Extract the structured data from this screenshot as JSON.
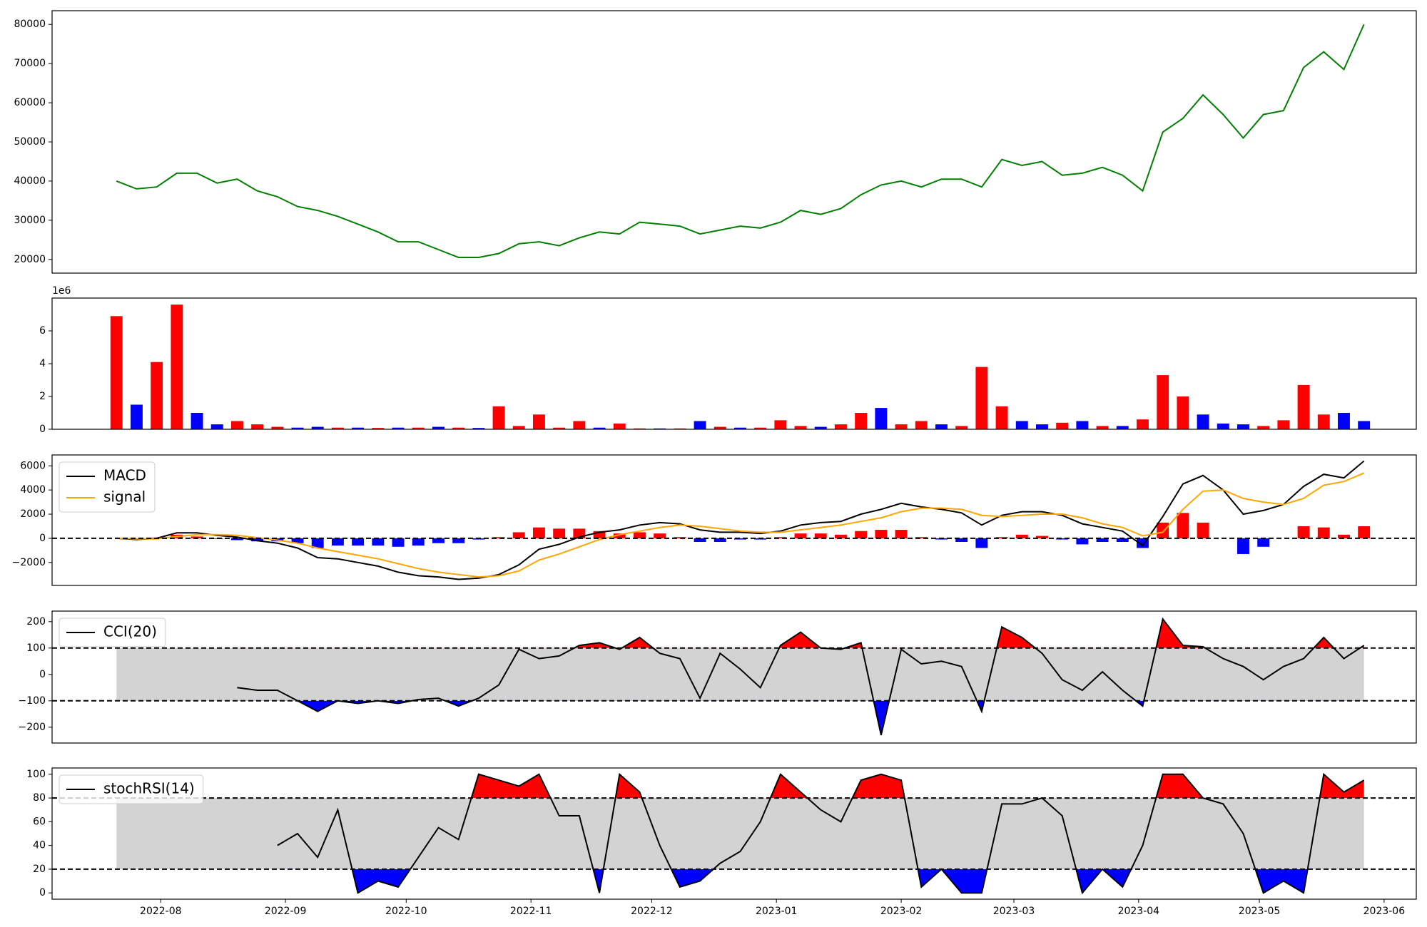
{
  "chart_data": [
    {
      "type": "line",
      "xlim": [
        "2022-07-05",
        "2023-06-09"
      ],
      "x": [
        "2022-07-21",
        "2022-07-26",
        "2022-07-31",
        "2022-08-05",
        "2022-08-10",
        "2022-08-15",
        "2022-08-20",
        "2022-08-25",
        "2022-08-30",
        "2022-09-04",
        "2022-09-09",
        "2022-09-14",
        "2022-09-19",
        "2022-09-24",
        "2022-09-29",
        "2022-10-04",
        "2022-10-09",
        "2022-10-14",
        "2022-10-19",
        "2022-10-24",
        "2022-10-29",
        "2022-11-03",
        "2022-11-08",
        "2022-11-13",
        "2022-11-18",
        "2022-11-23",
        "2022-11-28",
        "2022-12-03",
        "2022-12-08",
        "2022-12-13",
        "2022-12-18",
        "2022-12-23",
        "2022-12-28",
        "2023-01-02",
        "2023-01-07",
        "2023-01-12",
        "2023-01-17",
        "2023-01-22",
        "2023-01-27",
        "2023-02-01",
        "2023-02-06",
        "2023-02-11",
        "2023-02-16",
        "2023-02-21",
        "2023-02-26",
        "2023-03-03",
        "2023-03-08",
        "2023-03-13",
        "2023-03-18",
        "2023-03-23",
        "2023-03-28",
        "2023-04-02",
        "2023-04-07",
        "2023-04-12",
        "2023-04-17",
        "2023-04-22",
        "2023-04-27",
        "2023-05-02",
        "2023-05-07",
        "2023-05-12",
        "2023-05-17",
        "2023-05-22",
        "2023-05-27"
      ],
      "series": [
        {
          "color": "green",
          "values": [
            40000,
            38000,
            38500,
            42000,
            42000,
            39500,
            40500,
            37500,
            36000,
            33500,
            32500,
            31000,
            29000,
            27000,
            24500,
            24500,
            22500,
            20500,
            20500,
            21500,
            24000,
            24500,
            23500,
            25500,
            27000,
            26500,
            29500,
            29000,
            28500,
            26500,
            27500,
            28500,
            28000,
            29500,
            32500,
            31500,
            33000,
            36500,
            39000,
            40000,
            38500,
            40500,
            40500,
            38500,
            45500,
            44000,
            45000,
            41500,
            42000,
            43500,
            41500,
            37500,
            52500,
            56000,
            62000,
            57000,
            51000,
            57000,
            58000,
            69000,
            73000,
            68500,
            80000
          ]
        }
      ],
      "ylim": [
        16500,
        83500
      ],
      "yticks": [
        20000,
        30000,
        40000,
        50000,
        60000,
        70000,
        80000
      ]
    },
    {
      "type": "bar",
      "xlim": [
        "2022-07-05",
        "2023-06-09"
      ],
      "x": [
        "2022-07-21",
        "2022-07-26",
        "2022-07-31",
        "2022-08-05",
        "2022-08-10",
        "2022-08-15",
        "2022-08-20",
        "2022-08-25",
        "2022-08-30",
        "2022-09-04",
        "2022-09-09",
        "2022-09-14",
        "2022-09-19",
        "2022-09-24",
        "2022-09-29",
        "2022-10-04",
        "2022-10-09",
        "2022-10-14",
        "2022-10-19",
        "2022-10-24",
        "2022-10-29",
        "2022-11-03",
        "2022-11-08",
        "2022-11-13",
        "2022-11-18",
        "2022-11-23",
        "2022-11-28",
        "2022-12-03",
        "2022-12-08",
        "2022-12-13",
        "2022-12-18",
        "2022-12-23",
        "2022-12-28",
        "2023-01-02",
        "2023-01-07",
        "2023-01-12",
        "2023-01-17",
        "2023-01-22",
        "2023-01-27",
        "2023-02-01",
        "2023-02-06",
        "2023-02-11",
        "2023-02-16",
        "2023-02-21",
        "2023-02-26",
        "2023-03-03",
        "2023-03-08",
        "2023-03-13",
        "2023-03-18",
        "2023-03-23",
        "2023-03-28",
        "2023-04-02",
        "2023-04-07",
        "2023-04-12",
        "2023-04-17",
        "2023-04-22",
        "2023-04-27",
        "2023-05-02",
        "2023-05-07",
        "2023-05-12",
        "2023-05-17",
        "2023-05-22",
        "2023-05-27"
      ],
      "values": [
        6.9,
        1.5,
        4.1,
        7.6,
        1.0,
        0.3,
        0.5,
        0.3,
        0.15,
        0.1,
        0.15,
        0.1,
        0.1,
        0.08,
        0.1,
        0.1,
        0.15,
        0.1,
        0.08,
        1.4,
        0.2,
        0.9,
        0.1,
        0.5,
        0.1,
        0.35,
        0.05,
        0.05,
        0.05,
        0.5,
        0.15,
        0.1,
        0.1,
        0.55,
        0.2,
        0.15,
        0.3,
        1.0,
        1.3,
        0.3,
        0.5,
        0.3,
        0.2,
        3.8,
        1.4,
        0.5,
        0.3,
        0.4,
        0.5,
        0.2,
        0.2,
        0.6,
        3.3,
        2.0,
        0.9,
        0.35,
        0.3,
        0.2,
        0.55,
        2.7,
        0.9,
        1.0,
        0.5
      ],
      "colors": [
        "red",
        "blue",
        "red",
        "red",
        "blue",
        "blue",
        "red",
        "red",
        "red",
        "blue",
        "blue",
        "red",
        "blue",
        "red",
        "blue",
        "red",
        "blue",
        "red",
        "blue",
        "red",
        "red",
        "red",
        "red",
        "red",
        "blue",
        "red",
        "red",
        "blue",
        "red",
        "blue",
        "red",
        "blue",
        "red",
        "red",
        "red",
        "blue",
        "red",
        "red",
        "blue",
        "red",
        "red",
        "blue",
        "red",
        "red",
        "red",
        "blue",
        "blue",
        "red",
        "blue",
        "red",
        "blue",
        "red",
        "red",
        "red",
        "blue",
        "blue",
        "blue",
        "red",
        "red",
        "red",
        "red",
        "blue",
        "blue"
      ],
      "ylim": [
        0,
        8
      ],
      "yticks": [
        0,
        2,
        4,
        6
      ],
      "y_offset_label": "1e6"
    },
    {
      "type": "line",
      "xlim": [
        "2022-07-05",
        "2023-06-09"
      ],
      "x": [
        "2022-07-21",
        "2022-07-26",
        "2022-07-31",
        "2022-08-05",
        "2022-08-10",
        "2022-08-15",
        "2022-08-20",
        "2022-08-25",
        "2022-08-30",
        "2022-09-04",
        "2022-09-09",
        "2022-09-14",
        "2022-09-19",
        "2022-09-24",
        "2022-09-29",
        "2022-10-04",
        "2022-10-09",
        "2022-10-14",
        "2022-10-19",
        "2022-10-24",
        "2022-10-29",
        "2022-11-03",
        "2022-11-08",
        "2022-11-13",
        "2022-11-18",
        "2022-11-23",
        "2022-11-28",
        "2022-12-03",
        "2022-12-08",
        "2022-12-13",
        "2022-12-18",
        "2022-12-23",
        "2022-12-28",
        "2023-01-02",
        "2023-01-07",
        "2023-01-12",
        "2023-01-17",
        "2023-01-22",
        "2023-01-27",
        "2023-02-01",
        "2023-02-06",
        "2023-02-11",
        "2023-02-16",
        "2023-02-21",
        "2023-02-26",
        "2023-03-03",
        "2023-03-08",
        "2023-03-13",
        "2023-03-18",
        "2023-03-23",
        "2023-03-28",
        "2023-04-02",
        "2023-04-07",
        "2023-04-12",
        "2023-04-17",
        "2023-04-22",
        "2023-04-27",
        "2023-05-02",
        "2023-05-07",
        "2023-05-12",
        "2023-05-17",
        "2023-05-22",
        "2023-05-27"
      ],
      "series": [
        {
          "name": "MACD",
          "color": "black",
          "values": [
            0,
            -100,
            0,
            450,
            450,
            250,
            100,
            -200,
            -400,
            -800,
            -1600,
            -1700,
            -2000,
            -2300,
            -2800,
            -3100,
            -3200,
            -3400,
            -3300,
            -3000,
            -2200,
            -900,
            -500,
            100,
            500,
            700,
            1100,
            1300,
            1200,
            700,
            500,
            500,
            400,
            600,
            1100,
            1300,
            1400,
            2000,
            2400,
            2900,
            2600,
            2400,
            2100,
            1100,
            1900,
            2200,
            2200,
            1900,
            1200,
            900,
            600,
            -600,
            1800,
            4500,
            5200,
            4000,
            2000,
            2300,
            2800,
            4300,
            5300,
            5000,
            6400
          ]
        },
        {
          "name": "signal",
          "color": "orange",
          "values": [
            0,
            -50,
            -50,
            150,
            300,
            300,
            250,
            50,
            -150,
            -400,
            -800,
            -1100,
            -1400,
            -1700,
            -2100,
            -2500,
            -2800,
            -3000,
            -3200,
            -3100,
            -2700,
            -1800,
            -1300,
            -700,
            -100,
            300,
            600,
            900,
            1100,
            1000,
            800,
            600,
            500,
            500,
            700,
            900,
            1100,
            1400,
            1700,
            2200,
            2500,
            2500,
            2400,
            1900,
            1800,
            1900,
            2000,
            2000,
            1700,
            1200,
            900,
            200,
            500,
            2400,
            3900,
            4000,
            3300,
            3000,
            2800,
            3300,
            4400,
            4700,
            5400
          ]
        }
      ],
      "bar_values": [
        0,
        -50,
        50,
        300,
        150,
        -50,
        -150,
        -250,
        -250,
        -400,
        -800,
        -600,
        -600,
        -600,
        -700,
        -600,
        -400,
        -400,
        -100,
        100,
        500,
        900,
        800,
        800,
        600,
        400,
        500,
        400,
        100,
        -300,
        -300,
        -100,
        -100,
        100,
        400,
        400,
        300,
        600,
        700,
        700,
        100,
        -100,
        -300,
        -800,
        100,
        300,
        200,
        -100,
        -500,
        -300,
        -300,
        -800,
        1300,
        2100,
        1300,
        0,
        -1300,
        -700,
        0,
        1000,
        900,
        300,
        1000
      ],
      "bar_color_positive": "red",
      "bar_color_negative": "blue",
      "hlines": [
        0
      ],
      "legend": "upper left",
      "ylim": [
        -3900,
        6900
      ],
      "yticks": [
        {
          "value": -2000,
          "label": "−2000"
        },
        0,
        2000,
        4000,
        6000
      ]
    },
    {
      "type": "band",
      "xlim": [
        "2022-07-05",
        "2023-06-09"
      ],
      "x": [
        "2022-07-21",
        "2022-07-26",
        "2022-07-31",
        "2022-08-05",
        "2022-08-10",
        "2022-08-15",
        "2022-08-20",
        "2022-08-25",
        "2022-08-30",
        "2022-09-04",
        "2022-09-09",
        "2022-09-14",
        "2022-09-19",
        "2022-09-24",
        "2022-09-29",
        "2022-10-04",
        "2022-10-09",
        "2022-10-14",
        "2022-10-19",
        "2022-10-24",
        "2022-10-29",
        "2022-11-03",
        "2022-11-08",
        "2022-11-13",
        "2022-11-18",
        "2022-11-23",
        "2022-11-28",
        "2022-12-03",
        "2022-12-08",
        "2022-12-13",
        "2022-12-18",
        "2022-12-23",
        "2022-12-28",
        "2023-01-02",
        "2023-01-07",
        "2023-01-12",
        "2023-01-17",
        "2023-01-22",
        "2023-01-27",
        "2023-02-01",
        "2023-02-06",
        "2023-02-11",
        "2023-02-16",
        "2023-02-21",
        "2023-02-26",
        "2023-03-03",
        "2023-03-08",
        "2023-03-13",
        "2023-03-18",
        "2023-03-23",
        "2023-03-28",
        "2023-04-02",
        "2023-04-07",
        "2023-04-12",
        "2023-04-17",
        "2023-04-22",
        "2023-04-27",
        "2023-05-02",
        "2023-05-07",
        "2023-05-12",
        "2023-05-17",
        "2023-05-22",
        "2023-05-27"
      ],
      "series": [
        {
          "name": "CCI(20)",
          "color": "black",
          "values": [
            null,
            null,
            null,
            null,
            null,
            null,
            -50,
            -60,
            -60,
            -100,
            -140,
            -100,
            -110,
            -100,
            -110,
            -95,
            -90,
            -120,
            -90,
            -40,
            95,
            60,
            70,
            110,
            120,
            95,
            140,
            80,
            60,
            -90,
            80,
            20,
            -50,
            110,
            160,
            100,
            95,
            120,
            -230,
            95,
            40,
            50,
            30,
            -140,
            180,
            140,
            80,
            -20,
            -60,
            10,
            -60,
            -120,
            210,
            110,
            105,
            60,
            30,
            -20,
            30,
            60,
            140,
            60,
            110
          ]
        }
      ],
      "band": [
        -100,
        100
      ],
      "band_color": "lightgray",
      "above_color": "red",
      "below_color": "blue",
      "hlines": [
        -100,
        100
      ],
      "legend": "upper left",
      "ylim": [
        -260,
        240
      ],
      "yticks": [
        {
          "value": -200,
          "label": "−200"
        },
        {
          "value": -100,
          "label": "−100"
        },
        0,
        100,
        200
      ]
    },
    {
      "type": "band",
      "xlim": [
        "2022-07-05",
        "2023-06-09"
      ],
      "x": [
        "2022-07-21",
        "2022-07-26",
        "2022-07-31",
        "2022-08-05",
        "2022-08-10",
        "2022-08-15",
        "2022-08-20",
        "2022-08-25",
        "2022-08-30",
        "2022-09-04",
        "2022-09-09",
        "2022-09-14",
        "2022-09-19",
        "2022-09-24",
        "2022-09-29",
        "2022-10-04",
        "2022-10-09",
        "2022-10-14",
        "2022-10-19",
        "2022-10-24",
        "2022-10-29",
        "2022-11-03",
        "2022-11-08",
        "2022-11-13",
        "2022-11-18",
        "2022-11-23",
        "2022-11-28",
        "2022-12-03",
        "2022-12-08",
        "2022-12-13",
        "2022-12-18",
        "2022-12-23",
        "2022-12-28",
        "2023-01-02",
        "2023-01-07",
        "2023-01-12",
        "2023-01-17",
        "2023-01-22",
        "2023-01-27",
        "2023-02-01",
        "2023-02-06",
        "2023-02-11",
        "2023-02-16",
        "2023-02-21",
        "2023-02-26",
        "2023-03-03",
        "2023-03-08",
        "2023-03-13",
        "2023-03-18",
        "2023-03-23",
        "2023-03-28",
        "2023-04-02",
        "2023-04-07",
        "2023-04-12",
        "2023-04-17",
        "2023-04-22",
        "2023-04-27",
        "2023-05-02",
        "2023-05-07",
        "2023-05-12",
        "2023-05-17",
        "2023-05-22",
        "2023-05-27"
      ],
      "series": [
        {
          "name": "stochRSI(14)",
          "color": "black",
          "values": [
            null,
            null,
            null,
            null,
            null,
            null,
            null,
            null,
            40,
            50,
            30,
            70,
            0,
            10,
            5,
            30,
            55,
            45,
            100,
            95,
            90,
            100,
            65,
            65,
            0,
            100,
            85,
            40,
            5,
            10,
            25,
            35,
            60,
            100,
            85,
            70,
            60,
            95,
            100,
            95,
            5,
            20,
            0,
            0,
            75,
            75,
            80,
            65,
            0,
            20,
            5,
            40,
            100,
            100,
            80,
            75,
            50,
            0,
            10,
            0,
            100,
            85,
            95
          ]
        }
      ],
      "band": [
        20,
        80
      ],
      "band_color": "lightgray",
      "above_color": "red",
      "below_color": "blue",
      "hlines": [
        20,
        80
      ],
      "legend": "upper left",
      "ylim": [
        -5.3,
        105.3
      ],
      "yticks": [
        0,
        20,
        40,
        60,
        80,
        100
      ],
      "xticks": [
        {
          "value": "2022-08-01",
          "label": "2022-08"
        },
        {
          "value": "2022-09-01",
          "label": "2022-09"
        },
        {
          "value": "2022-10-01",
          "label": "2022-10"
        },
        {
          "value": "2022-11-01",
          "label": "2022-11"
        },
        {
          "value": "2022-12-01",
          "label": "2022-12"
        },
        {
          "value": "2023-01-01",
          "label": "2023-01"
        },
        {
          "value": "2023-02-01",
          "label": "2023-02"
        },
        {
          "value": "2023-03-01",
          "label": "2023-03"
        },
        {
          "value": "2023-04-01",
          "label": "2023-04"
        },
        {
          "value": "2023-05-01",
          "label": "2023-05"
        },
        {
          "value": "2023-06-01",
          "label": "2023-06"
        }
      ]
    }
  ]
}
